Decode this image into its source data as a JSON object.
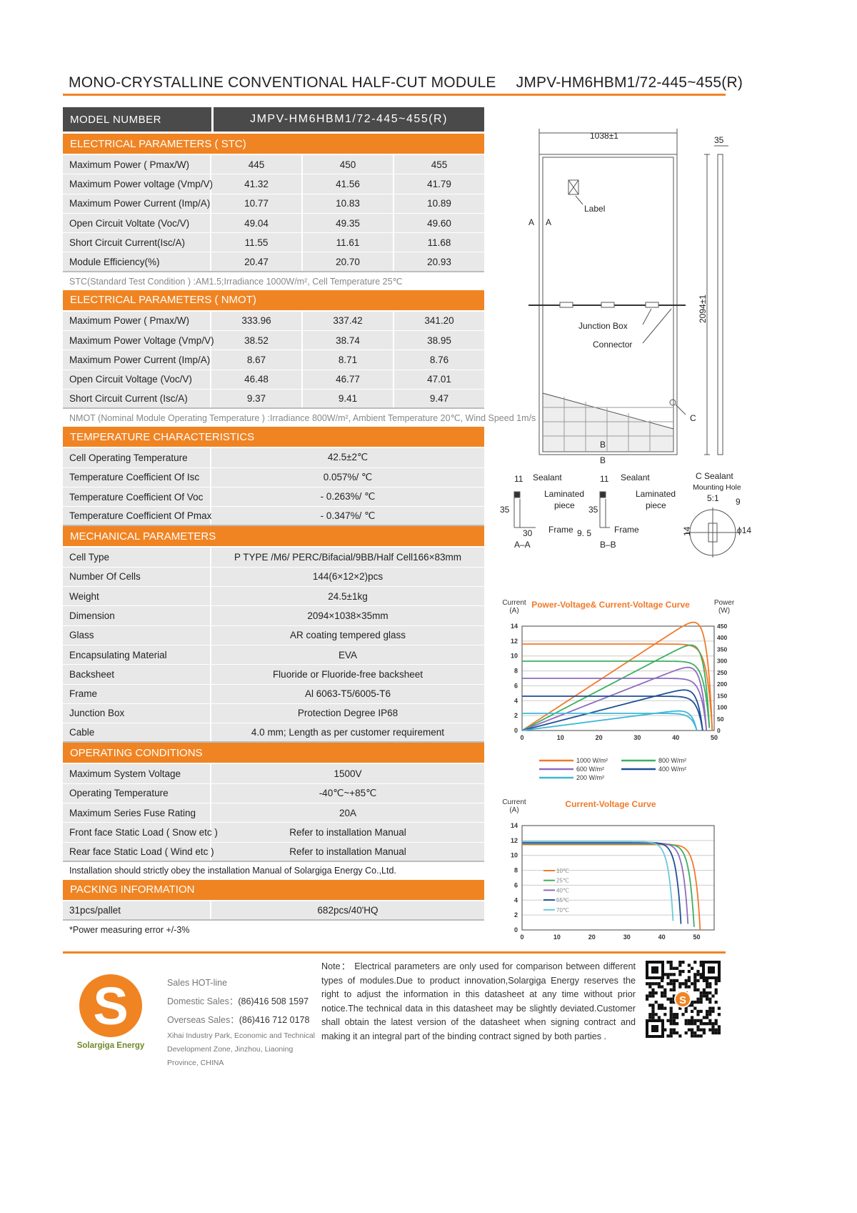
{
  "header": {
    "title_left": "MONO-CRYSTALLINE  CONVENTIONAL  HALF-CUT  MODULE",
    "title_right": "JMPV-HM6HBM1/72-445~455(R)"
  },
  "model": {
    "label": "MODEL   NUMBER",
    "value": "JMPV-HM6HBM1/72-445~455(R)"
  },
  "sections": [
    {
      "title": "ELECTRICAL PARAMETERS ( STC)",
      "rows": [
        [
          "Maximum Power ( Pmax/W)",
          "445",
          "450",
          "455"
        ],
        [
          "Maximum Power voltage (Vmp/V)",
          "41.32",
          "41.56",
          "41.79"
        ],
        [
          "Maximum Power Current (Imp/A)",
          "10.77",
          "10.83",
          "10.89"
        ],
        [
          "Open Circuit Voltate (Voc/V)",
          "49.04",
          "49.35",
          "49.60"
        ],
        [
          "Short Circuit Current(Isc/A)",
          "11.55",
          "11.61",
          "11.68"
        ],
        [
          "Module Efficiency(%)",
          "20.47",
          "20.70",
          "20.93"
        ]
      ],
      "note": "STC(Standard Test Condition  ) :AM1.5;Irradiance 1000W/m²,  Cell Temperature 25℃",
      "note_dark": false
    },
    {
      "title": "ELECTRICAL PARAMETERS ( NMOT)",
      "rows": [
        [
          "Maximum Power ( Pmax/W)",
          "333.96",
          "337.42",
          "341.20"
        ],
        [
          "Maximum Power Voltage (Vmp/V)",
          "38.52",
          "38.74",
          "38.95"
        ],
        [
          "Maximum Power Current (Imp/A)",
          "8.67",
          "8.71",
          "8.76"
        ],
        [
          "Open Circuit Voltage (Voc/V)",
          "46.48",
          "46.77",
          "47.01"
        ],
        [
          "Short Circuit Current (Isc/A)",
          "9.37",
          "9.41",
          "9.47"
        ]
      ],
      "note": "NMOT  (Nominal Module Operating Temperature ) :Irradiance 800W/m²,  Ambient Temperature  20℃,  Wind Speed 1m/s",
      "note_dark": false
    },
    {
      "title": "TEMPERATURE CHARACTERISTICS",
      "rows": [
        [
          "Cell Operating Temperature",
          "42.5±2℃"
        ],
        [
          "Temperature Coefficient Of Isc",
          "0.057%/ ℃"
        ],
        [
          "Temperature Coefficient Of Voc",
          "- 0.263%/ ℃"
        ],
        [
          "Temperature Coefficient Of Pmax",
          "- 0.347%/ ℃"
        ]
      ]
    },
    {
      "title": "MECHANICAL PARAMETERS",
      "rows": [
        [
          "Cell Type",
          "P TYPE /M6/ PERC/Bifacial/9BB/Half Cell166×83mm"
        ],
        [
          "Number Of Cells",
          "144(6×12×2)pcs"
        ],
        [
          "Weight",
          "24.5±1kg"
        ],
        [
          "Dimension",
          "2094×1038×35mm"
        ],
        [
          "Glass",
          "AR coating tempered glass"
        ],
        [
          "Encapsulating Material",
          "EVA"
        ],
        [
          "Backsheet",
          "Fluoride or Fluoride-free backsheet"
        ],
        [
          "Frame",
          "Al 6063-T5/6005-T6"
        ],
        [
          "Junction Box",
          "Protection Degree IP68"
        ],
        [
          "Cable",
          "4.0 mm;  Length as per customer requirement"
        ]
      ]
    },
    {
      "title": "OPERATING CONDITIONS",
      "rows": [
        [
          "Maximum System Voltage",
          "1500V"
        ],
        [
          "Operating Temperature",
          "-40℃~+85℃"
        ],
        [
          "Maximum Series Fuse Rating",
          "20A"
        ],
        [
          "Front face Static Load ( Snow etc )",
          "Refer to installation Manual"
        ],
        [
          "Rear face Static Load ( Wind etc )",
          "Refer to installation Manual"
        ]
      ],
      "note": "Installation should strictly obey the installation Manual of Solargiga  Energy Co.,Ltd.",
      "note_dark": true
    },
    {
      "title": "PACKING INFORMATION",
      "rows": [
        [
          "31pcs/pallet",
          "682pcs/40'HQ"
        ]
      ],
      "note": "*Power measuring error  +/-3%",
      "note_dark": true
    }
  ],
  "drawing": {
    "width": "1038±1",
    "depth": "35",
    "height": "2094±1",
    "label": "Label",
    "junction_box": "Junction Box",
    "connector": "Connector",
    "section_a": "A",
    "section_b": "B",
    "detail_c": "C",
    "aa": {
      "title": "A–A",
      "sealant": "Sealant",
      "laminated": "Laminated",
      "piece": "piece",
      "frame": "Frame",
      "d11": "11",
      "d35": "35",
      "d30": "30"
    },
    "bb": {
      "title": "B–B",
      "sealant": "Sealant",
      "laminated": "Laminated",
      "piece": "piece",
      "frame": "Frame",
      "d11": "11",
      "d35": "35",
      "d95": "9. 5"
    },
    "c": {
      "title": "C Sealant",
      "sub": "Mounting Hole",
      "scale": "5:1",
      "d9": "9",
      "d14": "14",
      "phi": "ϕ14"
    }
  },
  "chart_data": [
    {
      "type": "line",
      "title": "Power-Voltage& Current-Voltage Curve",
      "ylabel_lines": [
        "Current",
        "(A)"
      ],
      "y2label_lines": [
        "Power",
        "(W)"
      ],
      "xlim": [
        0,
        50
      ],
      "ylim": [
        0,
        14
      ],
      "y2lim": [
        0,
        450
      ],
      "xticks": [
        "0",
        "10",
        "20",
        "30",
        "40",
        "50"
      ],
      "yticks": [
        "0",
        "2",
        "4",
        "6",
        "8",
        "10",
        "12",
        "14"
      ],
      "y2ticks": [
        "0",
        "50",
        "100",
        "150",
        "200",
        "250",
        "300",
        "350",
        "400",
        "450"
      ],
      "grid": true,
      "legend": "bottom",
      "series": [
        {
          "name": "1000 W/m²",
          "color": "#f07a2a",
          "isc": 11.6,
          "voc": 49.5
        },
        {
          "name": "800 W/m²",
          "color": "#3cb060",
          "isc": 9.3,
          "voc": 48.8
        },
        {
          "name": "600 W/m²",
          "color": "#8e6cc0",
          "isc": 7.0,
          "voc": 48.0
        },
        {
          "name": "400 W/m²",
          "color": "#1f4f96",
          "isc": 4.6,
          "voc": 47.0
        },
        {
          "name": "200 W/m²",
          "color": "#3db8d8",
          "isc": 2.3,
          "voc": 45.5
        }
      ]
    },
    {
      "type": "line",
      "title": "Current-Voltage Curve",
      "ylabel_lines": [
        "Current",
        "(A)"
      ],
      "xlim": [
        0,
        55
      ],
      "ylim": [
        0,
        14
      ],
      "xticks": [
        "0",
        "10",
        "20",
        "30",
        "40",
        "50"
      ],
      "yticks": [
        "0",
        "2",
        "4",
        "6",
        "8",
        "10",
        "12",
        "14"
      ],
      "grid": true,
      "legend": "inside-left",
      "series": [
        {
          "name": "10℃",
          "color": "#f07a2a",
          "isc": 11.45,
          "voc": 51.0
        },
        {
          "name": "25℃",
          "color": "#3cb060",
          "isc": 11.55,
          "voc": 49.3
        },
        {
          "name": "40℃",
          "color": "#8e6cc0",
          "isc": 11.65,
          "voc": 47.6
        },
        {
          "name": "55℃",
          "color": "#1f4f96",
          "isc": 11.75,
          "voc": 45.6
        },
        {
          "name": "70℃",
          "color": "#6cc8dc",
          "isc": 11.85,
          "voc": 43.4
        }
      ]
    }
  ],
  "footer": {
    "brand": "Solargiga Energy",
    "hotline": "Sales HOT-line",
    "domestic_label": "Domestic Sales：",
    "domestic": "(86)416 508 1597",
    "overseas_label": "Overseas Sales：",
    "overseas": "(86)416 712 0178",
    "address": [
      "Xihai Industry Park, Economic and Technical",
      "Development  Zone, Jinzhou, Liaoning",
      "Province, CHINA"
    ],
    "note": "Note： Electrical parameters are only used for comparison between different types of modules.Due to product innovation,Solargiga Energy reserves the right to adjust the information in this datasheet at any time without prior notice.The technical data in this datasheet may be slightly deviated.Customer shall obtain the latest version of the datasheet when signing contract and making it an integral part of the binding contract signed by both parties .",
    "accent": "#f08423"
  }
}
